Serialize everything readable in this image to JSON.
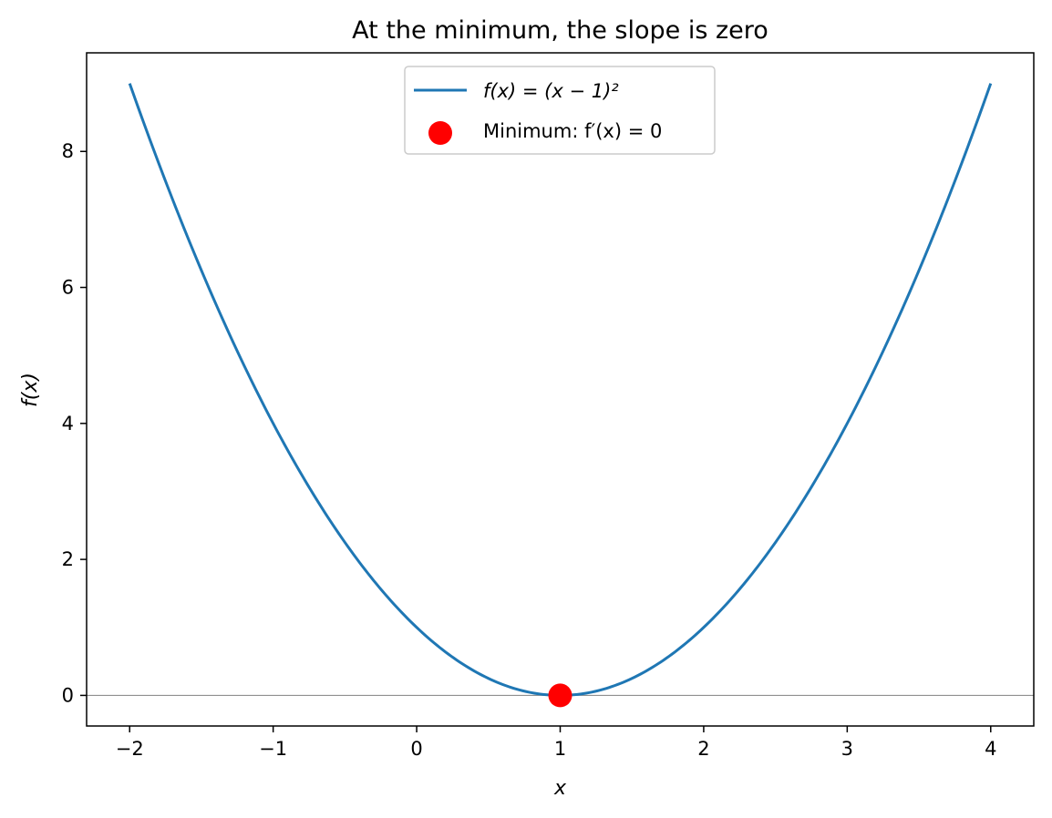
{
  "chart_data": {
    "type": "line",
    "title": "At the minimum, the slope is zero",
    "xlabel": "x",
    "ylabel": "f(x)",
    "xlim": [
      -2.3,
      4.3
    ],
    "ylim": [
      -0.45,
      9.45
    ],
    "xticks": [
      -2,
      -1,
      0,
      1,
      2,
      3,
      4
    ],
    "xtick_labels": [
      "−2",
      "−1",
      "0",
      "1",
      "2",
      "3",
      "4"
    ],
    "yticks": [
      0,
      2,
      4,
      6,
      8
    ],
    "ytick_labels": [
      "0",
      "2",
      "4",
      "6",
      "8"
    ],
    "grid": false,
    "legend_position": "upper center",
    "horizontal_line": {
      "y": 0,
      "color": "#808080"
    },
    "series": [
      {
        "name": "f(x) = (x − 1)²",
        "kind": "line",
        "function": "(x-1)^2",
        "x_range": [
          -2,
          4
        ],
        "color": "#1f77b4"
      },
      {
        "name": "Minimum: f′(x) = 0",
        "kind": "scatter",
        "points": [
          {
            "x": 1,
            "y": 0
          }
        ],
        "color": "#ff0000"
      }
    ]
  }
}
